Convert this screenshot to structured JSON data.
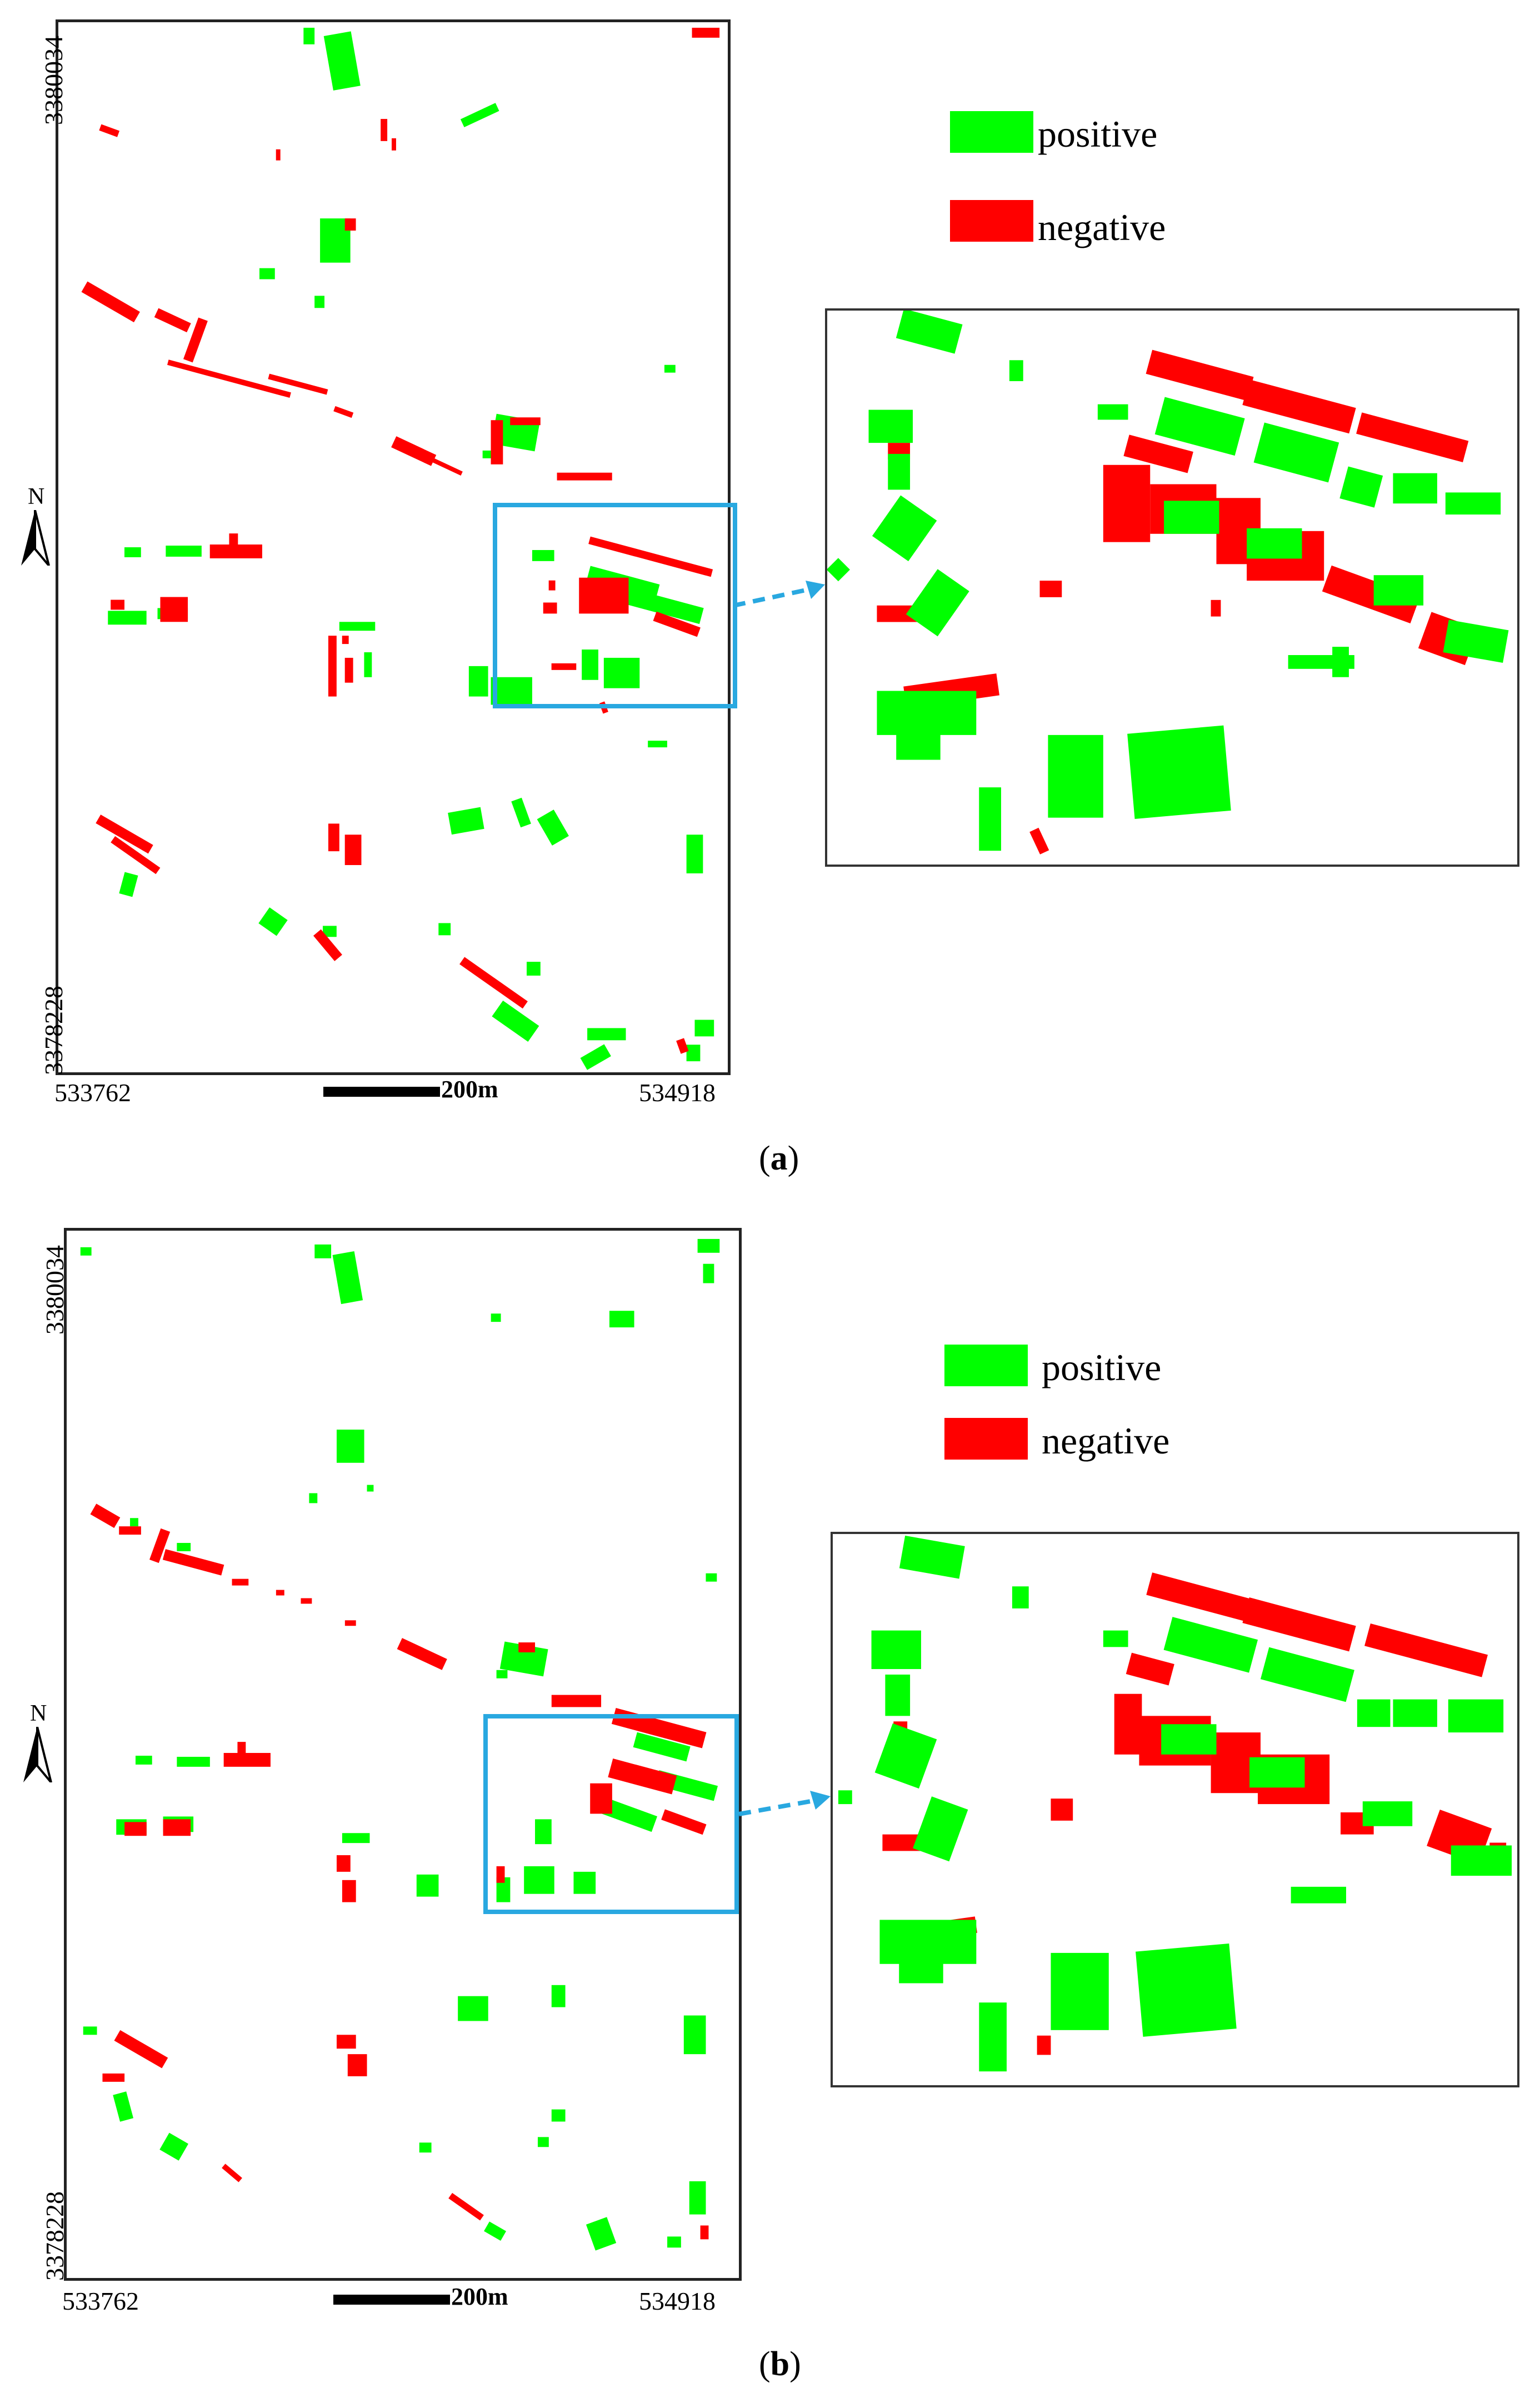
{
  "colors": {
    "positive": "#00ff00",
    "negative": "#ff0000",
    "highlight": "#29a8e0",
    "frame": "#222222"
  },
  "legend": {
    "positive_label": "positive",
    "negative_label": "negative"
  },
  "coords": {
    "y_top": "3380034",
    "y_bottom": "3378228",
    "x_left": "533762",
    "x_right": "534918"
  },
  "scalebar": {
    "label": "200m"
  },
  "north": {
    "label": "N",
    "icon": "north-arrow-icon"
  },
  "panels": [
    {
      "id": "a",
      "caption_open": "(",
      "caption_letter": "a",
      "caption_close": ")"
    },
    {
      "id": "b",
      "caption_open": "(",
      "caption_letter": "b",
      "caption_close": ")"
    }
  ]
}
